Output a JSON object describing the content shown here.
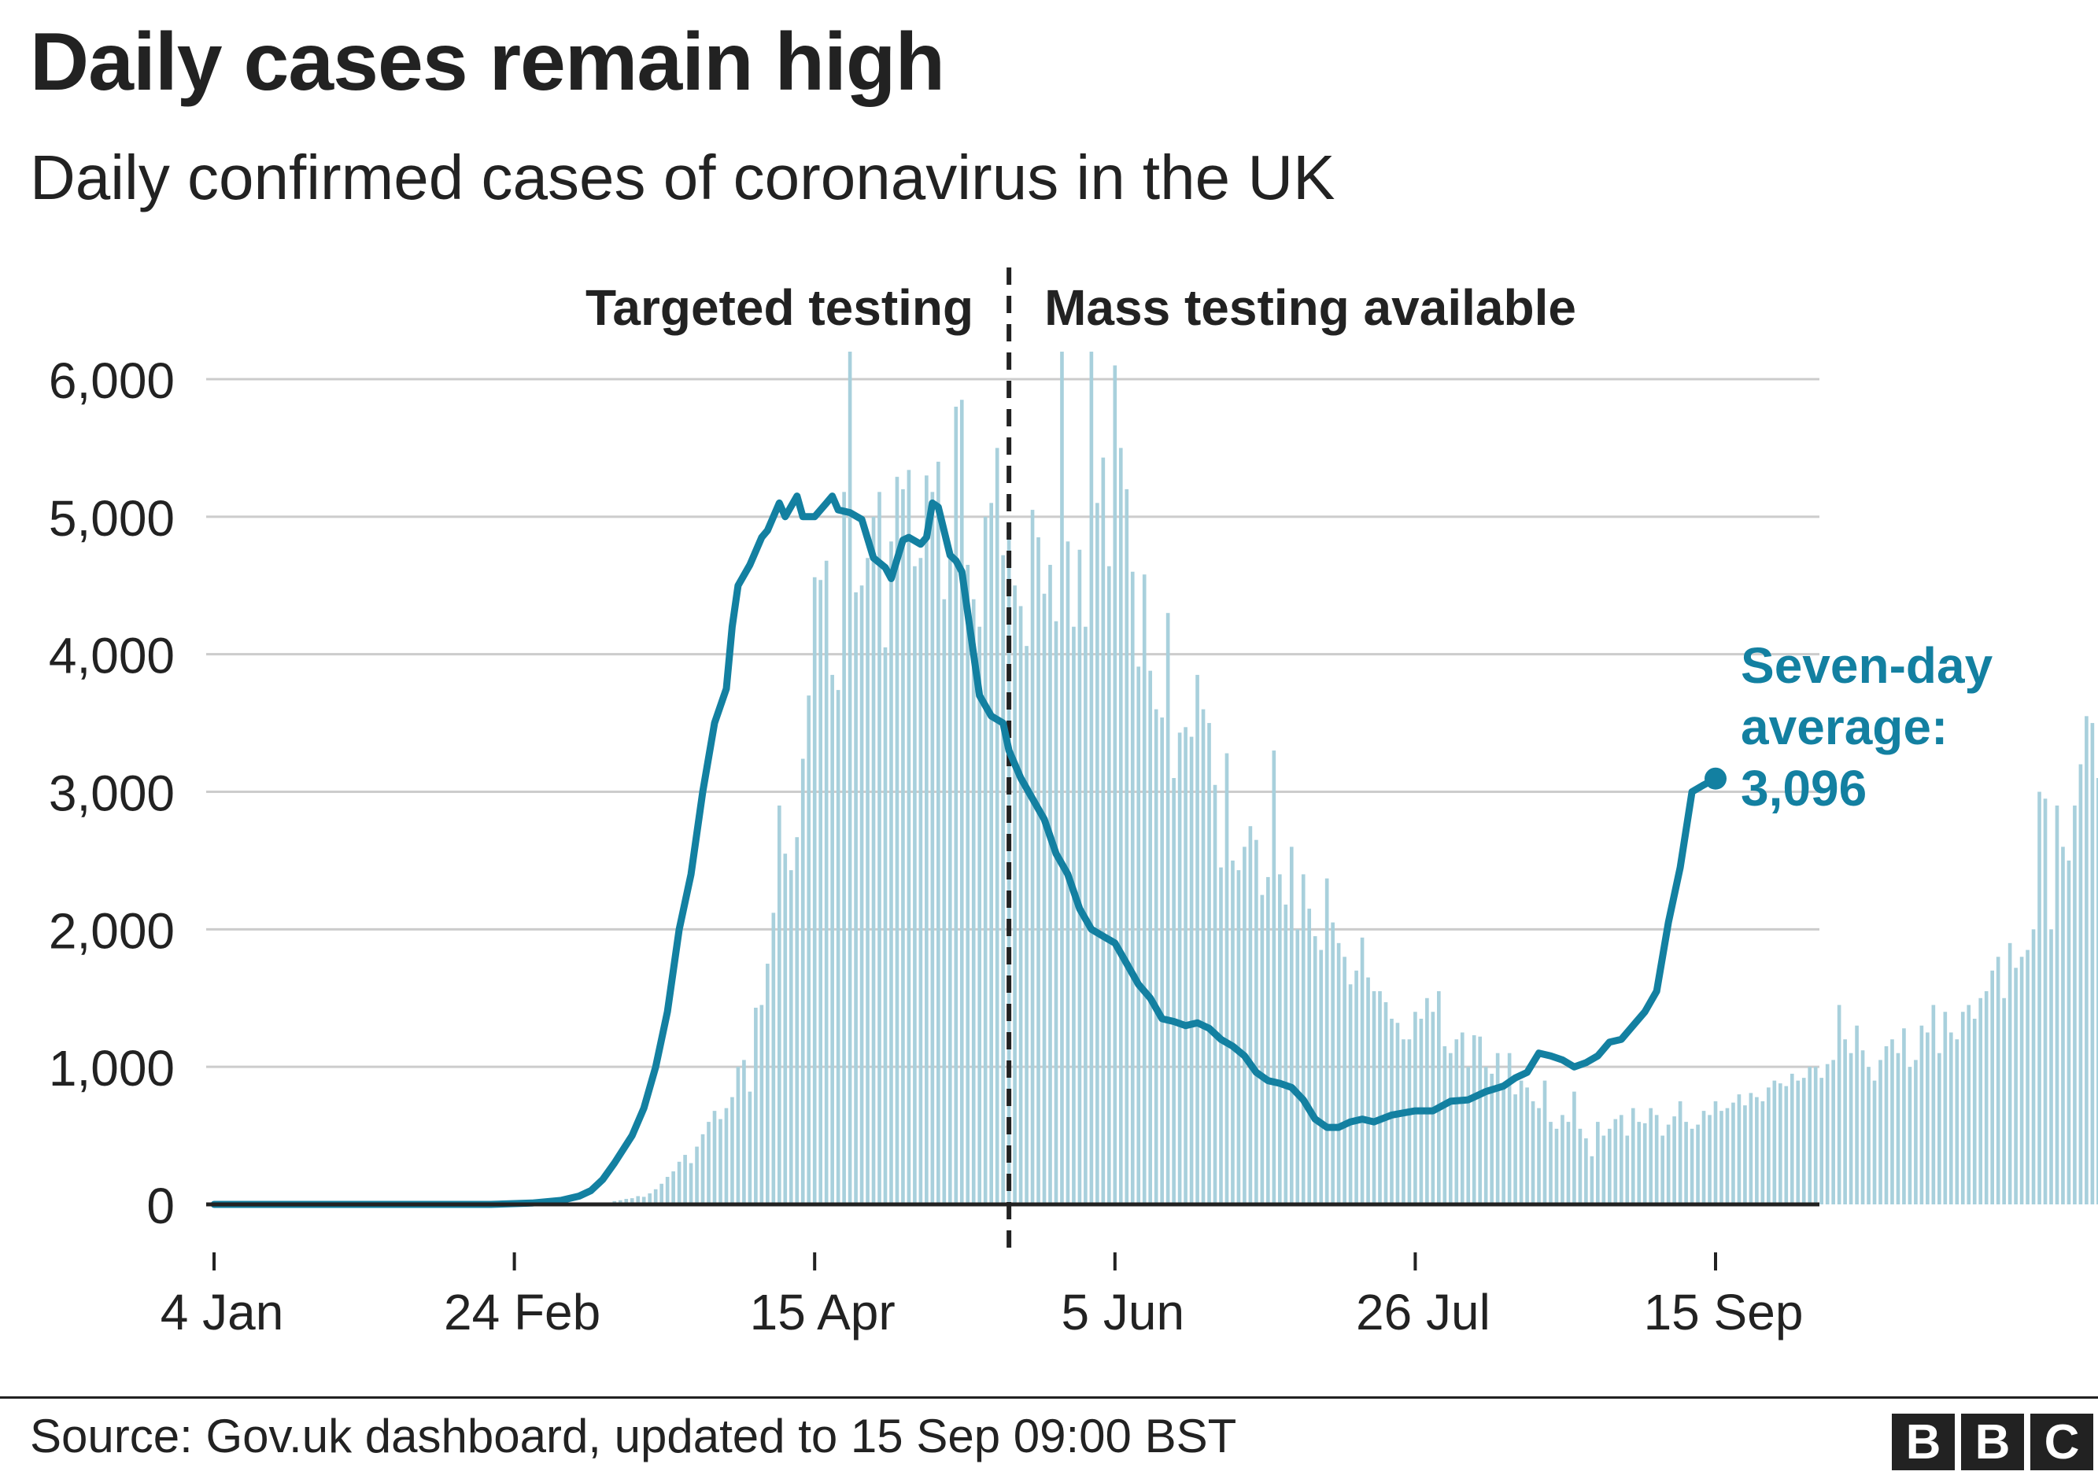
{
  "header": {
    "title": "Daily cases remain high",
    "subtitle": "Daily confirmed cases of coronavirus in the UK"
  },
  "footer": {
    "source": "Source: Gov.uk dashboard, updated to 15 Sep 09:00 BST",
    "logo_letters": [
      "B",
      "B",
      "C"
    ]
  },
  "colors": {
    "bar": "#a8d0dc",
    "line": "#1380a1",
    "grid": "#cccccc",
    "axis": "#222222",
    "text": "#222222"
  },
  "chart_data": {
    "type": "bar",
    "title": "Daily cases remain high",
    "subtitle": "Daily confirmed cases of coronavirus in the UK",
    "xlabel": "",
    "ylabel": "",
    "x_start": "2020-01-04",
    "x_end": "2020-09-15",
    "ylim": [
      0,
      6000
    ],
    "y_ticks": [
      0,
      1000,
      2000,
      3000,
      4000,
      5000,
      6000
    ],
    "y_tick_labels": [
      "0",
      "1,000",
      "2,000",
      "3,000",
      "4,000",
      "5,000",
      "6,000"
    ],
    "x_ticks": [
      "2020-01-04",
      "2020-02-24",
      "2020-04-15",
      "2020-06-05",
      "2020-07-26",
      "2020-09-15"
    ],
    "x_tick_labels": [
      "4 Jan",
      "24 Feb",
      "15 Apr",
      "5 Jun",
      "26 Jul",
      "15 Sep"
    ],
    "grid": true,
    "regions": [
      {
        "label": "Targeted testing",
        "end": "2020-05-18"
      },
      {
        "label": "Mass testing available",
        "start": "2020-05-18"
      }
    ],
    "divider_date": "2020-05-18",
    "series": [
      {
        "name": "Daily confirmed cases",
        "type": "bar",
        "start": "2020-01-04",
        "interval_days": 1,
        "values": [
          0,
          0,
          0,
          0,
          0,
          0,
          0,
          0,
          0,
          0,
          0,
          0,
          0,
          0,
          0,
          0,
          0,
          0,
          0,
          0,
          0,
          0,
          0,
          0,
          0,
          0,
          0,
          2,
          0,
          0,
          0,
          0,
          0,
          0,
          0,
          3,
          0,
          0,
          0,
          0,
          0,
          0,
          0,
          0,
          0,
          0,
          0,
          0,
          0,
          0,
          0,
          0,
          0,
          0,
          0,
          0,
          0,
          4,
          0,
          2,
          2,
          4,
          3,
          5,
          8,
          13,
          10,
          14,
          24,
          30,
          40,
          45,
          60,
          55,
          80,
          110,
          150,
          200,
          240,
          310,
          360,
          300,
          420,
          510,
          600,
          680,
          620,
          700,
          780,
          1000,
          1050,
          820,
          1430,
          1450,
          1750,
          2120,
          2900,
          2550,
          2430,
          2670,
          3240,
          3700,
          4560,
          4540,
          4680,
          3850,
          3740,
          5180,
          6200,
          4450,
          4500,
          4700,
          5000,
          5180,
          4050,
          4820,
          5290,
          5200,
          5340,
          4640,
          4700,
          5300,
          5180,
          5400,
          4400,
          4740,
          5800,
          5850,
          4650,
          4400,
          4200,
          5000,
          5100,
          5500,
          4720,
          4960,
          4500,
          4350,
          4060,
          5050,
          4850,
          4440,
          4650,
          4240,
          6200,
          4820,
          4200,
          4760,
          4200,
          6200,
          5100,
          5430,
          4640,
          6100,
          5500,
          5200,
          4600,
          3910,
          4580,
          3880,
          3600,
          3540,
          4300,
          3100,
          3430,
          3470,
          3400,
          3850,
          3600,
          3500,
          3050,
          2450,
          3280,
          2500,
          2430,
          2600,
          2750,
          2650,
          2250,
          2380,
          3300,
          2400,
          2180,
          2600,
          2000,
          2400,
          2150,
          1950,
          1850,
          2370,
          2050,
          1900,
          1800,
          1600,
          1700,
          1940,
          1650,
          1550,
          1550,
          1470,
          1350,
          1320,
          1200,
          1200,
          1400,
          1350,
          1500,
          1400,
          1550,
          1150,
          1100,
          1200,
          1250,
          1000,
          1230,
          1220,
          1000,
          950,
          1100,
          850,
          1100,
          800,
          900,
          850,
          750,
          700,
          900,
          600,
          550,
          650,
          600,
          820,
          550,
          480,
          350,
          600,
          500,
          550,
          620,
          650,
          500,
          700,
          600,
          590,
          700,
          650,
          500,
          580,
          640,
          750,
          600,
          550,
          580,
          680,
          650,
          750,
          680,
          700,
          740,
          800,
          720,
          810,
          780,
          750,
          850,
          900,
          880,
          860,
          950,
          900,
          920,
          1000,
          1000,
          920,
          1020,
          1050,
          1450,
          1200,
          1100,
          1300,
          1120,
          1000,
          900,
          1050,
          1150,
          1200,
          1100,
          1280,
          1000,
          1050,
          1300,
          1250,
          1450,
          1100,
          1400,
          1250,
          1200,
          1400,
          1450,
          1350,
          1500,
          1550,
          1700,
          1800,
          1500,
          1900,
          1720,
          1800,
          1850,
          2000,
          3000,
          2950,
          2000,
          2900,
          2600,
          2500,
          2900,
          3200,
          3550,
          3500,
          3100,
          3000,
          2600,
          3000
        ]
      },
      {
        "name": "Seven-day average",
        "type": "line",
        "points": [
          [
            "2020-01-04",
            0
          ],
          [
            "2020-02-20",
            0
          ],
          [
            "2020-02-27",
            10
          ],
          [
            "2020-03-03",
            30
          ],
          [
            "2020-03-06",
            60
          ],
          [
            "2020-03-08",
            100
          ],
          [
            "2020-03-10",
            180
          ],
          [
            "2020-03-12",
            300
          ],
          [
            "2020-03-15",
            500
          ],
          [
            "2020-03-17",
            700
          ],
          [
            "2020-03-19",
            1000
          ],
          [
            "2020-03-21",
            1400
          ],
          [
            "2020-03-23",
            2000
          ],
          [
            "2020-03-25",
            2400
          ],
          [
            "2020-03-27",
            3000
          ],
          [
            "2020-03-29",
            3500
          ],
          [
            "2020-03-31",
            3750
          ],
          [
            "2020-04-01",
            4200
          ],
          [
            "2020-04-02",
            4500
          ],
          [
            "2020-04-04",
            4650
          ],
          [
            "2020-04-06",
            4850
          ],
          [
            "2020-04-07",
            4900
          ],
          [
            "2020-04-09",
            5100
          ],
          [
            "2020-04-10",
            5000
          ],
          [
            "2020-04-12",
            5150
          ],
          [
            "2020-04-13",
            5000
          ],
          [
            "2020-04-15",
            5000
          ],
          [
            "2020-04-17",
            5100
          ],
          [
            "2020-04-18",
            5150
          ],
          [
            "2020-04-19",
            5050
          ],
          [
            "2020-04-21",
            5030
          ],
          [
            "2020-04-23",
            4980
          ],
          [
            "2020-04-25",
            4700
          ],
          [
            "2020-04-27",
            4630
          ],
          [
            "2020-04-28",
            4550
          ],
          [
            "2020-04-30",
            4830
          ],
          [
            "2020-05-01",
            4850
          ],
          [
            "2020-05-03",
            4800
          ],
          [
            "2020-05-04",
            4850
          ],
          [
            "2020-05-05",
            5100
          ],
          [
            "2020-05-06",
            5070
          ],
          [
            "2020-05-08",
            4720
          ],
          [
            "2020-05-09",
            4680
          ],
          [
            "2020-05-10",
            4600
          ],
          [
            "2020-05-12",
            4000
          ],
          [
            "2020-05-13",
            3700
          ],
          [
            "2020-05-15",
            3550
          ],
          [
            "2020-05-17",
            3500
          ],
          [
            "2020-05-18",
            3300
          ],
          [
            "2020-05-20",
            3100
          ],
          [
            "2020-05-22",
            2950
          ],
          [
            "2020-05-24",
            2800
          ],
          [
            "2020-05-26",
            2550
          ],
          [
            "2020-05-28",
            2400
          ],
          [
            "2020-05-30",
            2150
          ],
          [
            "2020-06-01",
            2000
          ],
          [
            "2020-06-03",
            1950
          ],
          [
            "2020-06-05",
            1900
          ],
          [
            "2020-06-07",
            1750
          ],
          [
            "2020-06-09",
            1600
          ],
          [
            "2020-06-11",
            1500
          ],
          [
            "2020-06-13",
            1350
          ],
          [
            "2020-06-15",
            1330
          ],
          [
            "2020-06-17",
            1300
          ],
          [
            "2020-06-19",
            1320
          ],
          [
            "2020-06-21",
            1280
          ],
          [
            "2020-06-23",
            1200
          ],
          [
            "2020-06-25",
            1150
          ],
          [
            "2020-06-27",
            1080
          ],
          [
            "2020-06-29",
            960
          ],
          [
            "2020-07-01",
            900
          ],
          [
            "2020-07-03",
            880
          ],
          [
            "2020-07-05",
            850
          ],
          [
            "2020-07-07",
            760
          ],
          [
            "2020-07-09",
            620
          ],
          [
            "2020-07-11",
            560
          ],
          [
            "2020-07-13",
            560
          ],
          [
            "2020-07-15",
            600
          ],
          [
            "2020-07-17",
            620
          ],
          [
            "2020-07-19",
            600
          ],
          [
            "2020-07-22",
            650
          ],
          [
            "2020-07-26",
            680
          ],
          [
            "2020-07-29",
            680
          ],
          [
            "2020-08-01",
            750
          ],
          [
            "2020-08-04",
            760
          ],
          [
            "2020-08-07",
            820
          ],
          [
            "2020-08-10",
            860
          ],
          [
            "2020-08-12",
            920
          ],
          [
            "2020-08-14",
            960
          ],
          [
            "2020-08-16",
            1100
          ],
          [
            "2020-08-18",
            1080
          ],
          [
            "2020-08-20",
            1050
          ],
          [
            "2020-08-22",
            1000
          ],
          [
            "2020-08-24",
            1030
          ],
          [
            "2020-08-26",
            1080
          ],
          [
            "2020-08-28",
            1180
          ],
          [
            "2020-08-30",
            1200
          ],
          [
            "2020-09-01",
            1300
          ],
          [
            "2020-09-03",
            1400
          ],
          [
            "2020-09-05",
            1550
          ],
          [
            "2020-09-07",
            2050
          ],
          [
            "2020-09-09",
            2450
          ],
          [
            "2020-09-11",
            3000
          ],
          [
            "2020-09-13",
            3050
          ],
          [
            "2020-09-15",
            3096
          ]
        ]
      }
    ],
    "annotation": {
      "lines": [
        "Seven-day",
        "average:",
        "3,096"
      ],
      "date": "2020-09-15",
      "value": 3096
    }
  }
}
